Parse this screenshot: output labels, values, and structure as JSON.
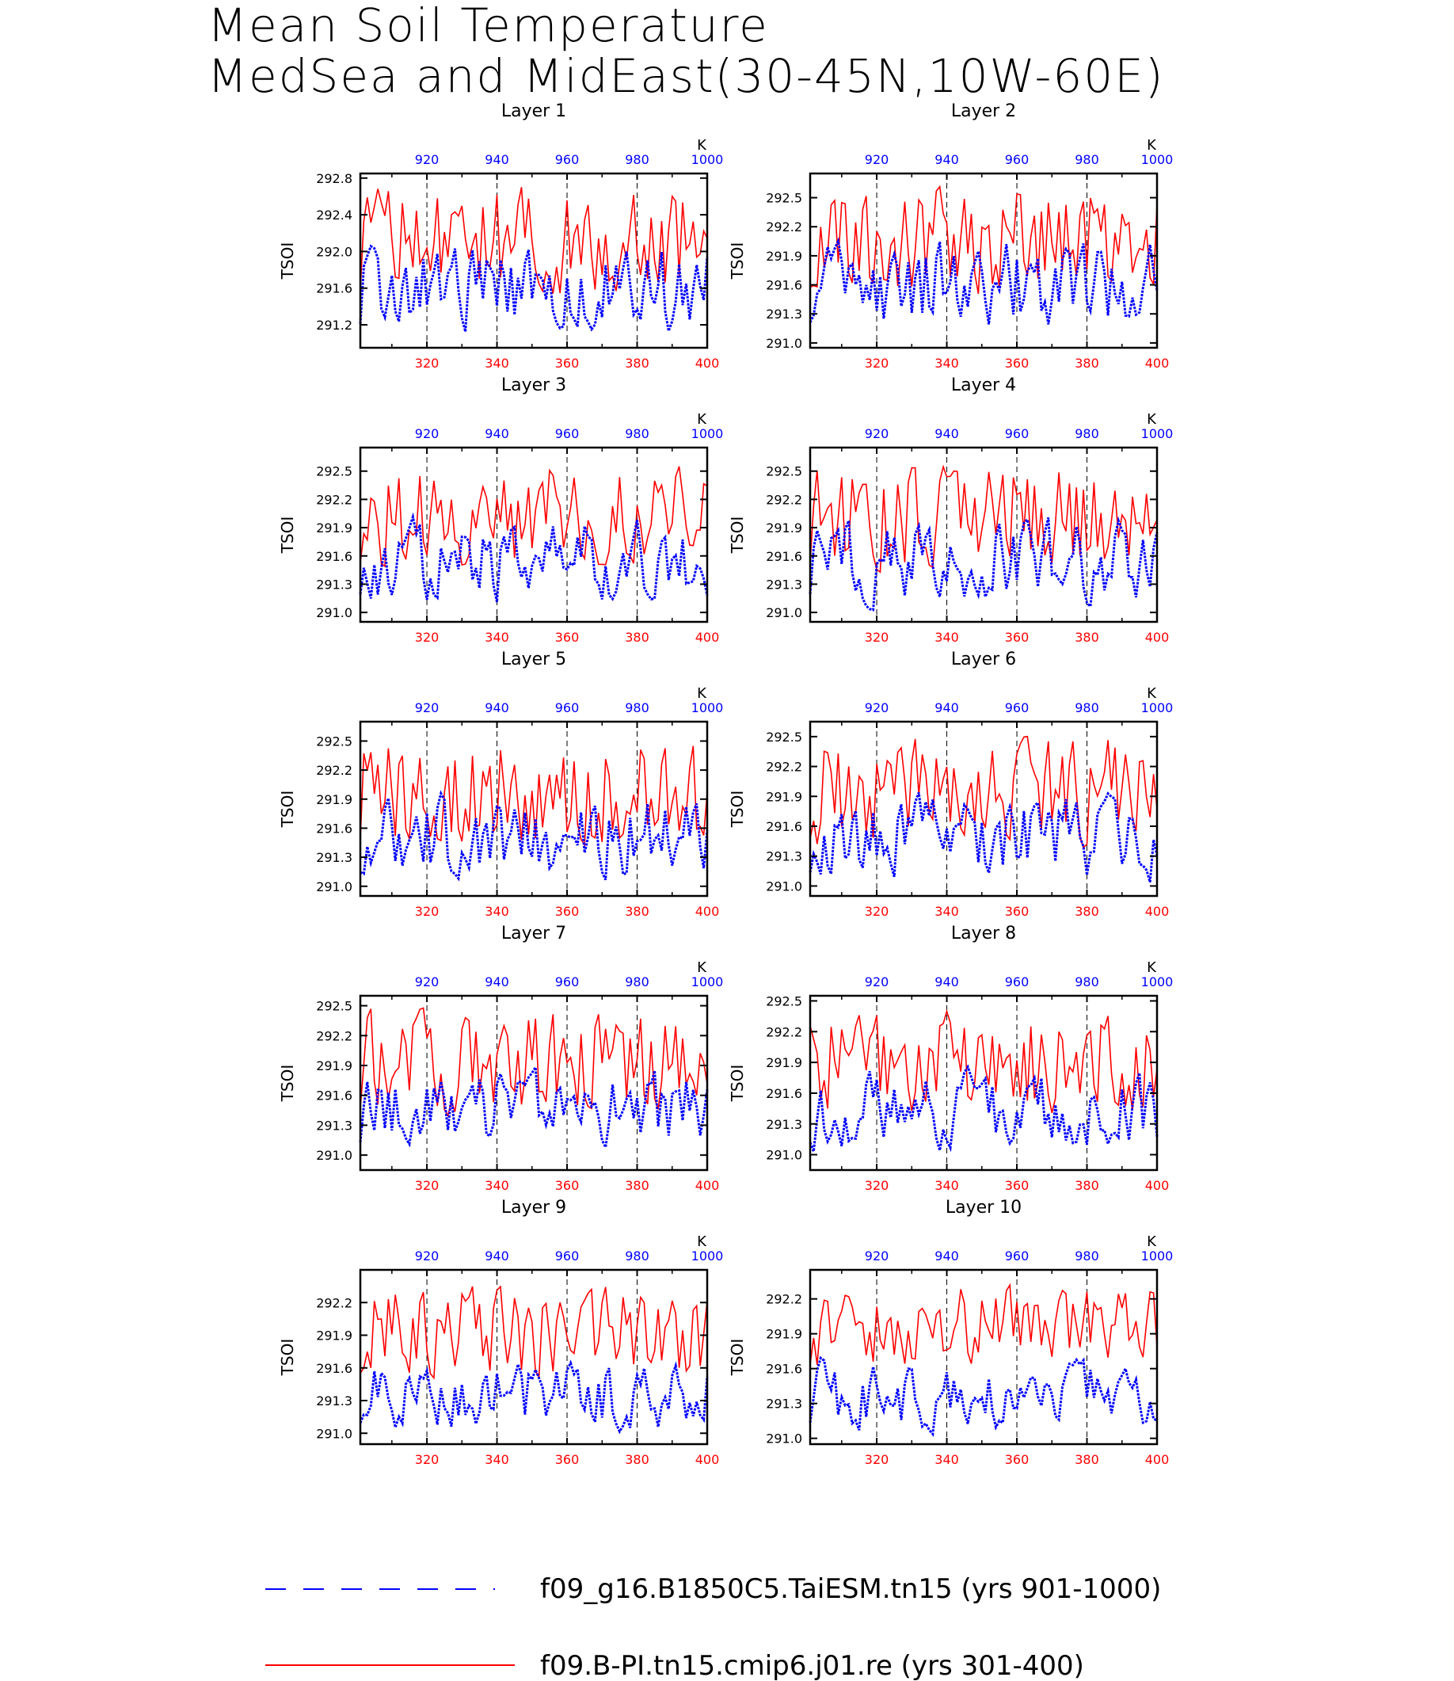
{
  "title_lines": [
    "Mean Soil Temperature",
    "MedSea and MidEast(30-45N,10W-60E)"
  ],
  "colors": {
    "red_series": "#ff0000",
    "blue_series": "#0000ff",
    "axis": "#000000"
  },
  "legend": [
    {
      "label": "f09_g16.B1850C5.TaiESM.tn15 (yrs 901-1000)",
      "color": "#0000ff",
      "style": "dashed"
    },
    {
      "label": "f09.B-PI.tn15.cmip6.j01.re (yrs 301-400)",
      "color": "#ff0000",
      "style": "solid"
    }
  ],
  "chart_data": [
    {
      "type": "line",
      "title": "Layer 1",
      "ylabel": "TSOI",
      "top_axis_unit": "K",
      "xlim": [
        301,
        400
      ],
      "xticks": [
        320,
        340,
        360,
        380,
        400
      ],
      "top_xlim": [
        901,
        1000
      ],
      "top_xticks": [
        920,
        940,
        960,
        980,
        1000
      ],
      "ylim": [
        290.95,
        292.85
      ],
      "yticks": [
        "291.2",
        "291.6",
        "292.0",
        "292.4",
        "292.8"
      ],
      "red_range": [
        291.45,
        292.75
      ],
      "blue_range": [
        291.0,
        292.2
      ],
      "grid": "vertical dashed at top-axis ticks"
    },
    {
      "type": "line",
      "title": "Layer 2",
      "ylabel": "TSOI",
      "top_axis_unit": "K",
      "xlim": [
        301,
        400
      ],
      "xticks": [
        320,
        340,
        360,
        380,
        400
      ],
      "top_xlim": [
        901,
        1000
      ],
      "top_xticks": [
        920,
        940,
        960,
        980,
        1000
      ],
      "ylim": [
        290.95,
        292.75
      ],
      "yticks": [
        "291.0",
        "291.3",
        "291.6",
        "291.9",
        "292.2",
        "292.5"
      ],
      "red_range": [
        291.45,
        292.7
      ],
      "blue_range": [
        291.0,
        292.2
      ],
      "grid": "vertical dashed at top-axis ticks"
    },
    {
      "type": "line",
      "title": "Layer 3",
      "ylabel": "TSOI",
      "top_axis_unit": "K",
      "xlim": [
        301,
        400
      ],
      "xticks": [
        320,
        340,
        360,
        380,
        400
      ],
      "top_xlim": [
        901,
        1000
      ],
      "top_xticks": [
        920,
        940,
        960,
        980,
        1000
      ],
      "ylim": [
        290.9,
        292.75
      ],
      "yticks": [
        "291.0",
        "291.3",
        "291.6",
        "291.9",
        "292.2",
        "292.5"
      ],
      "red_range": [
        291.4,
        292.65
      ],
      "blue_range": [
        291.0,
        292.1
      ],
      "grid": "vertical dashed at top-axis ticks"
    },
    {
      "type": "line",
      "title": "Layer 4",
      "ylabel": "TSOI",
      "top_axis_unit": "K",
      "xlim": [
        301,
        400
      ],
      "xticks": [
        320,
        340,
        360,
        380,
        400
      ],
      "top_xlim": [
        901,
        1000
      ],
      "top_xticks": [
        920,
        940,
        960,
        980,
        1000
      ],
      "ylim": [
        290.9,
        292.75
      ],
      "yticks": [
        "291.0",
        "291.3",
        "291.6",
        "291.9",
        "292.2",
        "292.5"
      ],
      "red_range": [
        291.4,
        292.65
      ],
      "blue_range": [
        291.0,
        292.1
      ],
      "grid": "vertical dashed at top-axis ticks"
    },
    {
      "type": "line",
      "title": "Layer 5",
      "ylabel": "TSOI",
      "top_axis_unit": "K",
      "xlim": [
        301,
        400
      ],
      "xticks": [
        320,
        340,
        360,
        380,
        400
      ],
      "top_xlim": [
        901,
        1000
      ],
      "top_xticks": [
        920,
        940,
        960,
        980,
        1000
      ],
      "ylim": [
        290.9,
        292.7
      ],
      "yticks": [
        "291.0",
        "291.3",
        "291.6",
        "291.9",
        "292.2",
        "292.5"
      ],
      "red_range": [
        291.35,
        292.6
      ],
      "blue_range": [
        290.95,
        292.05
      ],
      "grid": "vertical dashed at top-axis ticks"
    },
    {
      "type": "line",
      "title": "Layer 6",
      "ylabel": "TSOI",
      "top_axis_unit": "K",
      "xlim": [
        301,
        400
      ],
      "xticks": [
        320,
        340,
        360,
        380,
        400
      ],
      "top_xlim": [
        901,
        1000
      ],
      "top_xticks": [
        920,
        940,
        960,
        980,
        1000
      ],
      "ylim": [
        290.9,
        292.65
      ],
      "yticks": [
        "291.0",
        "291.3",
        "291.6",
        "291.9",
        "292.2",
        "292.5"
      ],
      "red_range": [
        291.35,
        292.55
      ],
      "blue_range": [
        290.95,
        292.0
      ],
      "grid": "vertical dashed at top-axis ticks"
    },
    {
      "type": "line",
      "title": "Layer 7",
      "ylabel": "TSOI",
      "top_axis_unit": "K",
      "xlim": [
        301,
        400
      ],
      "xticks": [
        320,
        340,
        360,
        380,
        400
      ],
      "top_xlim": [
        901,
        1000
      ],
      "top_xticks": [
        920,
        940,
        960,
        980,
        1000
      ],
      "ylim": [
        290.85,
        292.6
      ],
      "yticks": [
        "291.0",
        "291.3",
        "291.6",
        "291.9",
        "292.2",
        "292.5"
      ],
      "red_range": [
        291.35,
        292.5
      ],
      "blue_range": [
        290.95,
        291.95
      ],
      "grid": "vertical dashed at top-axis ticks"
    },
    {
      "type": "line",
      "title": "Layer 8",
      "ylabel": "TSOI",
      "top_axis_unit": "K",
      "xlim": [
        301,
        400
      ],
      "xticks": [
        320,
        340,
        360,
        380,
        400
      ],
      "top_xlim": [
        901,
        1000
      ],
      "top_xticks": [
        920,
        940,
        960,
        980,
        1000
      ],
      "ylim": [
        290.85,
        292.55
      ],
      "yticks": [
        "291.0",
        "291.3",
        "291.6",
        "291.9",
        "292.2",
        "292.5"
      ],
      "red_range": [
        291.35,
        292.45
      ],
      "blue_range": [
        290.95,
        291.9
      ],
      "grid": "vertical dashed at top-axis ticks"
    },
    {
      "type": "line",
      "title": "Layer 9",
      "ylabel": "TSOI",
      "top_axis_unit": "K",
      "xlim": [
        301,
        400
      ],
      "xticks": [
        320,
        340,
        360,
        380,
        400
      ],
      "top_xlim": [
        901,
        1000
      ],
      "top_xticks": [
        920,
        940,
        960,
        980,
        1000
      ],
      "ylim": [
        290.9,
        292.5
      ],
      "yticks": [
        "291.0",
        "291.3",
        "291.6",
        "291.9",
        "292.2"
      ],
      "red_range": [
        291.45,
        292.4
      ],
      "blue_range": [
        290.95,
        291.75
      ],
      "grid": "vertical dashed at top-axis ticks"
    },
    {
      "type": "line",
      "title": "Layer 10",
      "ylabel": "TSOI",
      "top_axis_unit": "K",
      "xlim": [
        301,
        400
      ],
      "xticks": [
        320,
        340,
        360,
        380,
        400
      ],
      "top_xlim": [
        901,
        1000
      ],
      "top_xticks": [
        920,
        940,
        960,
        980,
        1000
      ],
      "ylim": [
        290.95,
        292.45
      ],
      "yticks": [
        "291.0",
        "291.3",
        "291.6",
        "291.9",
        "292.2"
      ],
      "red_range": [
        291.55,
        292.35
      ],
      "blue_range": [
        291.0,
        291.75
      ],
      "grid": "vertical dashed at top-axis ticks"
    }
  ]
}
